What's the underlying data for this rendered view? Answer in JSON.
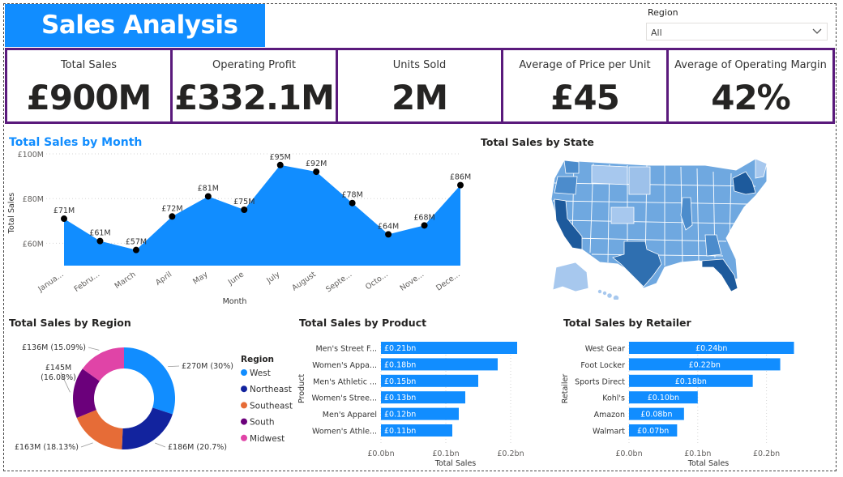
{
  "dashboard": {
    "title": "Sales Analysis"
  },
  "slicer": {
    "label": "Region",
    "value": "All"
  },
  "kpis": [
    {
      "label": "Total Sales",
      "value": "£900M"
    },
    {
      "label": "Operating Profit",
      "value": "£332.1M"
    },
    {
      "label": "Units Sold",
      "value": "2M"
    },
    {
      "label": "Average of Price per Unit",
      "value": "£45"
    },
    {
      "label": "Average of Operating Margin",
      "value": "42%"
    }
  ],
  "visual_titles": {
    "month": "Total Sales by Month",
    "state": "Total Sales by State",
    "region": "Total Sales by Region",
    "product": "Total Sales by Product",
    "retailer": "Total Sales by Retailer"
  },
  "colors": {
    "accent": "#118dff",
    "kpi_border": "#5a1a7c",
    "marker": "#000000"
  },
  "chart_data": [
    {
      "id": "month",
      "type": "area",
      "title": "Total Sales by Month",
      "xlabel": "Month",
      "ylabel": "Total Sales",
      "ylim": [
        50,
        100
      ],
      "yticks": [
        60,
        80,
        100
      ],
      "ytick_labels": [
        "£60M",
        "£80M",
        "£100M"
      ],
      "categories": [
        "January",
        "February",
        "March",
        "April",
        "May",
        "June",
        "July",
        "August",
        "September",
        "October",
        "November",
        "December"
      ],
      "category_labels": [
        "Janua...",
        "Febru...",
        "March",
        "April",
        "May",
        "June",
        "July",
        "August",
        "Septe...",
        "Octo...",
        "Nove...",
        "Dece..."
      ],
      "values": [
        71,
        61,
        57,
        72,
        81,
        75,
        95,
        92,
        78,
        64,
        68,
        86
      ],
      "data_labels": [
        "£71M",
        "£61M",
        "£57M",
        "£72M",
        "£81M",
        "£75M",
        "£95M",
        "£92M",
        "£78M",
        "£64M",
        "£68M",
        "£86M"
      ]
    },
    {
      "id": "region",
      "type": "pie",
      "title": "Total Sales by Region",
      "legend_title": "Region",
      "categories": [
        "West",
        "Northeast",
        "Southeast",
        "South",
        "Midwest"
      ],
      "values": [
        270,
        186,
        163,
        145,
        136
      ],
      "colors": [
        "#118dff",
        "#12239e",
        "#e66c37",
        "#6b007b",
        "#e044a7"
      ],
      "data_labels": [
        "£270M (30%)",
        "£186M (20.7%)",
        "£163M (18.13%)",
        "£145M (16.08%)",
        "£136M (15.09%)"
      ]
    },
    {
      "id": "product",
      "type": "bar",
      "orientation": "horizontal",
      "title": "Total Sales by Product",
      "xlabel": "Total Sales",
      "ylabel": "Product",
      "xlim": [
        0,
        0.25
      ],
      "xticks": [
        0,
        0.1,
        0.2
      ],
      "xtick_labels": [
        "£0.0bn",
        "£0.1bn",
        "£0.2bn"
      ],
      "categories": [
        "Men's Street F...",
        "Women's Appa...",
        "Men's Athletic ...",
        "Women's Stree...",
        "Men's Apparel",
        "Women's Athle..."
      ],
      "values": [
        0.21,
        0.18,
        0.15,
        0.13,
        0.12,
        0.11
      ],
      "data_labels": [
        "£0.21bn",
        "£0.18bn",
        "£0.15bn",
        "£0.13bn",
        "£0.12bn",
        "£0.11bn"
      ]
    },
    {
      "id": "retailer",
      "type": "bar",
      "orientation": "horizontal",
      "title": "Total Sales by Retailer",
      "xlabel": "Total Sales",
      "ylabel": "Retailer",
      "xlim": [
        0,
        0.25
      ],
      "xticks": [
        0,
        0.1,
        0.2
      ],
      "xtick_labels": [
        "£0.0bn",
        "£0.1bn",
        "£0.2bn"
      ],
      "categories": [
        "West Gear",
        "Foot Locker",
        "Sports Direct",
        "Kohl's",
        "Amazon",
        "Walmart"
      ],
      "values": [
        0.24,
        0.22,
        0.18,
        0.1,
        0.08,
        0.07
      ],
      "data_labels": [
        "£0.24bn",
        "£0.22bn",
        "£0.18bn",
        "£0.10bn",
        "£0.08bn",
        "£0.07bn"
      ]
    }
  ]
}
